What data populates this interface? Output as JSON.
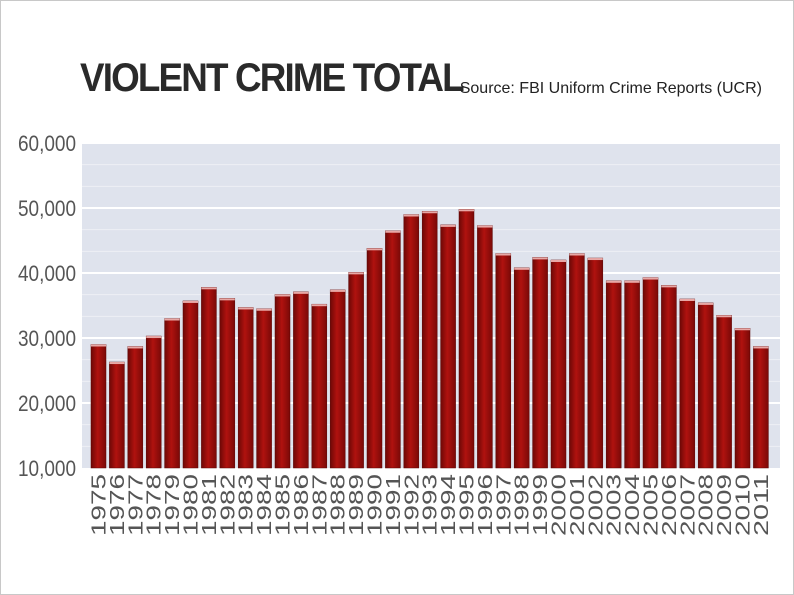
{
  "chart_data": {
    "type": "bar",
    "title": "VIOLENT CRIME TOTAL",
    "source": "Source: FBI Uniform Crime Reports (UCR)",
    "xlabel": "",
    "ylabel": "",
    "ylim": [
      10000,
      60000
    ],
    "yticks": [
      "10,000",
      "20,000",
      "30,000",
      "40,000",
      "50,000",
      "60,000"
    ],
    "grid": true,
    "categories": [
      "1975",
      "1976",
      "1977",
      "1978",
      "1979",
      "1980",
      "1981",
      "1982",
      "1983",
      "1984",
      "1985",
      "1986",
      "1987",
      "1988",
      "1989",
      "1990",
      "1991",
      "1992",
      "1993",
      "1994",
      "1995",
      "1996",
      "1997",
      "1998",
      "1999",
      "2000",
      "2001",
      "2002",
      "2003",
      "2004",
      "2005",
      "2006",
      "2007",
      "2008",
      "2009",
      "2010",
      "2011"
    ],
    "values": [
      29000,
      26300,
      28700,
      30300,
      33000,
      35700,
      37800,
      36100,
      34700,
      34500,
      36700,
      37100,
      35200,
      37400,
      40100,
      43800,
      46500,
      49000,
      49500,
      47400,
      49800,
      47300,
      43000,
      40800,
      42400,
      42000,
      43000,
      42300,
      38800,
      38800,
      39300,
      38100,
      36000,
      35400,
      33500,
      31500,
      28700
    ],
    "bar_color": "#9a0d0b",
    "plot_background": "#dfe3ed",
    "grid_color": "#ffffff"
  }
}
